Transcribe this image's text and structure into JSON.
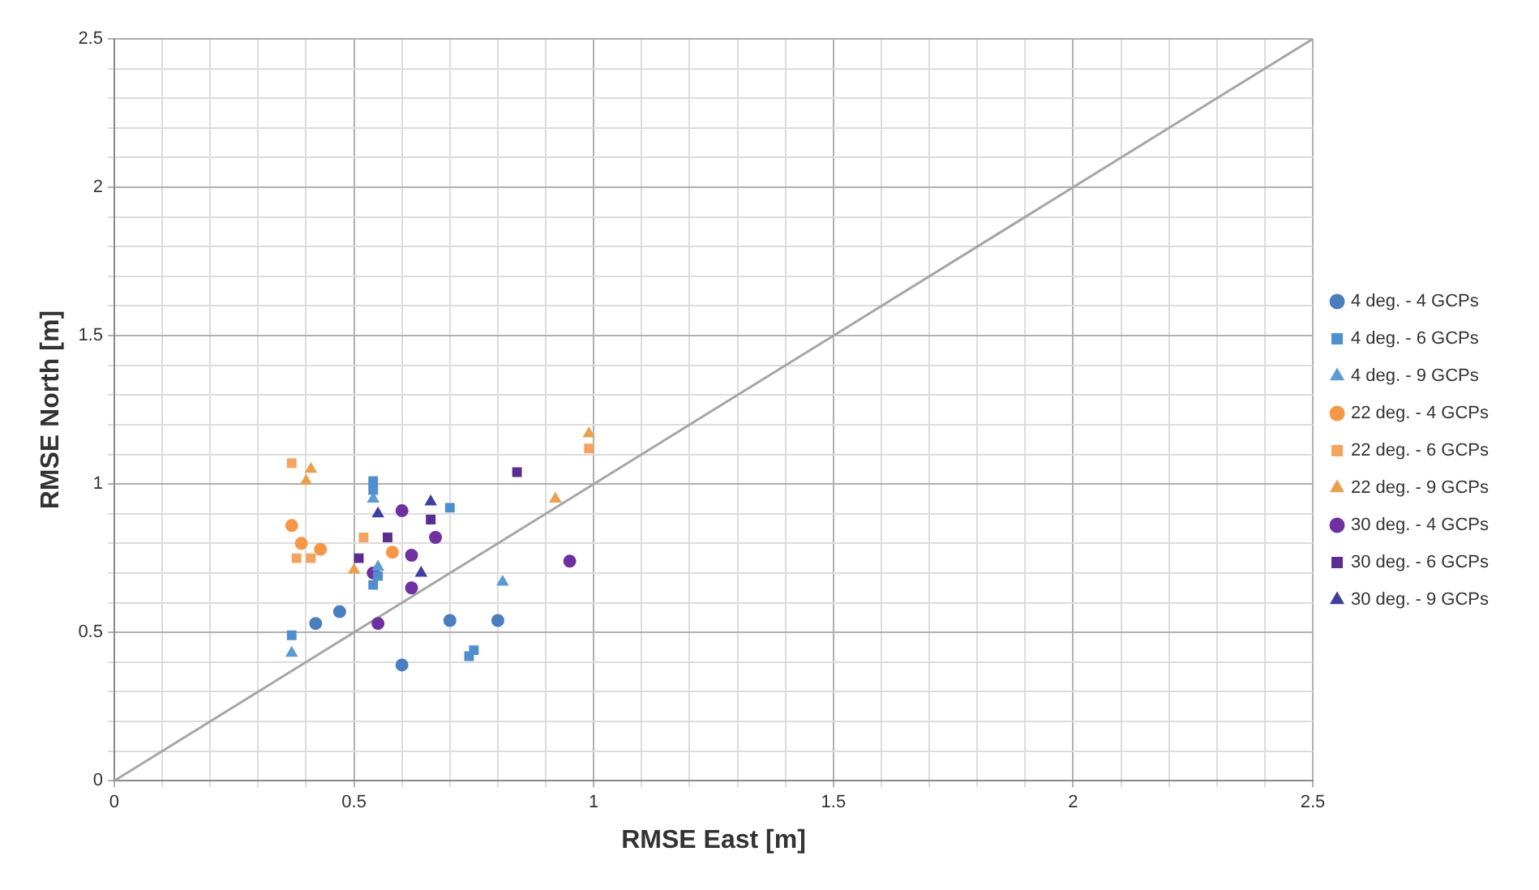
{
  "chart_data": {
    "type": "scatter",
    "xlabel": "RMSE East [m]",
    "ylabel": "RMSE North [m]",
    "xlim": [
      0,
      2.5
    ],
    "ylim": [
      0,
      2.5
    ],
    "xticks": [
      0,
      {
        "value": 0.1,
        "label": null
      },
      {
        "value": 0.2,
        "label": null
      },
      {
        "value": 0.3,
        "label": null
      },
      {
        "value": 0.4,
        "label": null
      },
      0.5,
      {
        "value": 0.6,
        "label": null
      },
      {
        "value": 0.7,
        "label": null
      },
      {
        "value": 0.8,
        "label": null
      },
      {
        "value": 0.9,
        "label": null
      },
      1,
      {
        "value": 1.1,
        "label": null
      },
      {
        "value": 1.2,
        "label": null
      },
      {
        "value": 1.3,
        "label": null
      },
      {
        "value": 1.4,
        "label": null
      },
      1.5,
      {
        "value": 1.6,
        "label": null
      },
      {
        "value": 1.7,
        "label": null
      },
      {
        "value": 1.8,
        "label": null
      },
      {
        "value": 1.9,
        "label": null
      },
      2,
      {
        "value": 2.1,
        "label": null
      },
      {
        "value": 2.2,
        "label": null
      },
      {
        "value": 2.3,
        "label": null
      },
      {
        "value": 2.4,
        "label": null
      },
      2.5
    ],
    "yticks": [
      0,
      {
        "value": 0.1,
        "label": null
      },
      {
        "value": 0.2,
        "label": null
      },
      {
        "value": 0.3,
        "label": null
      },
      {
        "value": 0.4,
        "label": null
      },
      0.5,
      {
        "value": 0.6,
        "label": null
      },
      {
        "value": 0.7,
        "label": null
      },
      {
        "value": 0.8,
        "label": null
      },
      {
        "value": 0.9,
        "label": null
      },
      1,
      {
        "value": 1.1,
        "label": null
      },
      {
        "value": 1.2,
        "label": null
      },
      {
        "value": 1.3,
        "label": null
      },
      {
        "value": 1.4,
        "label": null
      },
      1.5,
      {
        "value": 1.6,
        "label": null
      },
      {
        "value": 1.7,
        "label": null
      },
      {
        "value": 1.8,
        "label": null
      },
      {
        "value": 1.9,
        "label": null
      },
      2,
      {
        "value": 2.1,
        "label": null
      },
      {
        "value": 2.2,
        "label": null
      },
      {
        "value": 2.3,
        "label": null
      },
      {
        "value": 2.4,
        "label": null
      },
      2.5
    ],
    "grid": true,
    "legend": "right",
    "series": [
      {
        "name": "4 deg. - 4 GCPs",
        "color": "#4a7ebf",
        "marker": "circle",
        "x": [
          0.42,
          0.47,
          0.6,
          0.7,
          0.8
        ],
        "values": [
          0.53,
          0.57,
          0.39,
          0.54,
          0.54
        ]
      },
      {
        "name": "4 deg. - 6 GCPs",
        "color": "#4f8fd0",
        "marker": "square",
        "x": [
          0.37,
          0.54,
          0.54,
          0.54,
          0.55,
          0.75,
          0.74,
          0.7
        ],
        "values": [
          0.49,
          1.01,
          0.98,
          0.66,
          0.69,
          0.44,
          0.42,
          0.92
        ]
      },
      {
        "name": "4 deg. - 9 GCPs",
        "color": "#5b9bd5",
        "marker": "triangle",
        "x": [
          0.37,
          0.54,
          0.81,
          0.55
        ],
        "values": [
          0.43,
          0.95,
          0.67,
          0.72
        ]
      },
      {
        "name": "22 deg. - 4 GCPs",
        "color": "#f79646",
        "marker": "circle",
        "x": [
          0.37,
          0.39,
          0.43,
          0.58
        ],
        "values": [
          0.86,
          0.8,
          0.78,
          0.77
        ]
      },
      {
        "name": "22 deg. - 6 GCPs",
        "color": "#f4a460",
        "marker": "square",
        "x": [
          0.37,
          0.38,
          0.41,
          0.52,
          0.99
        ],
        "values": [
          1.07,
          0.75,
          0.75,
          0.82,
          1.12
        ]
      },
      {
        "name": "22 deg. - 9 GCPs",
        "color": "#e8a050",
        "marker": "triangle",
        "x": [
          0.41,
          0.4,
          0.5,
          0.92,
          0.99
        ],
        "values": [
          1.05,
          1.01,
          0.71,
          0.95,
          1.17
        ]
      },
      {
        "name": "30 deg. - 4 GCPs",
        "color": "#7030a0",
        "marker": "circle",
        "x": [
          0.6,
          0.95,
          0.67,
          0.62,
          0.55,
          0.62,
          0.54
        ],
        "values": [
          0.91,
          0.74,
          0.82,
          0.76,
          0.53,
          0.65,
          0.7
        ]
      },
      {
        "name": "30 deg. - 6 GCPs",
        "color": "#5a2d91",
        "marker": "square",
        "x": [
          0.84,
          0.57,
          0.51,
          0.66
        ],
        "values": [
          1.04,
          0.82,
          0.75,
          0.88
        ]
      },
      {
        "name": "30 deg. - 9 GCPs",
        "color": "#3f3f9f",
        "marker": "triangle",
        "x": [
          0.66,
          0.55,
          0.64
        ],
        "values": [
          0.94,
          0.9,
          0.7
        ]
      },
      {
        "type": "line",
        "color": "#a6a6a6",
        "marker": "none",
        "x": [
          0,
          2.5
        ],
        "values": [
          0,
          2.5
        ]
      }
    ]
  }
}
